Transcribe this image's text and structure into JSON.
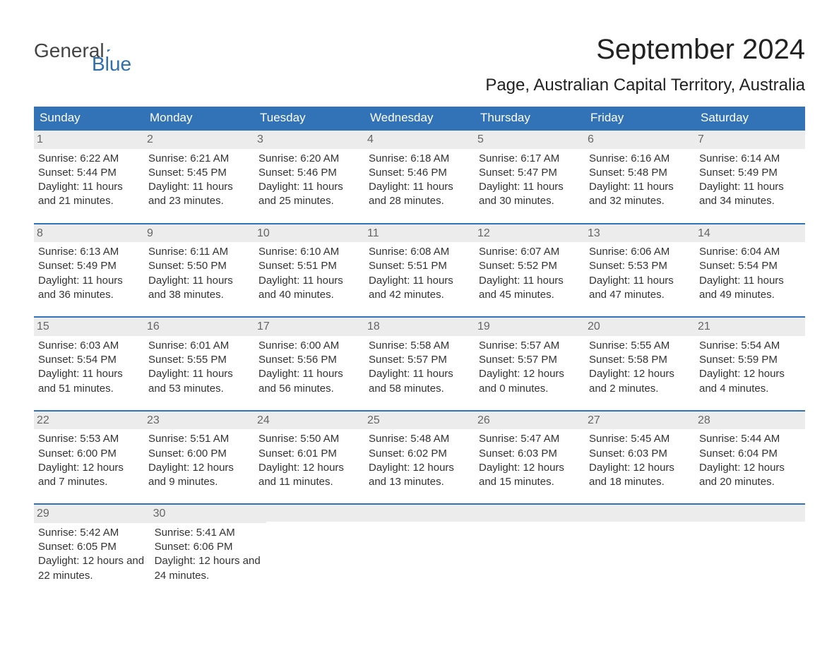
{
  "brand": {
    "word1": "General",
    "word2": "Blue",
    "color_general": "#444444",
    "color_blue": "#2f6fad",
    "mark_color": "#2f6fad"
  },
  "title": "September 2024",
  "location": "Page, Australian Capital Territory, Australia",
  "colors": {
    "header_bg": "#3173b6",
    "header_text": "#ffffff",
    "week_border": "#3173b6",
    "daynum_bg": "#ececec",
    "daynum_text": "#666666",
    "body_text": "#333333",
    "page_bg": "#ffffff"
  },
  "typography": {
    "title_fontsize": 40,
    "location_fontsize": 24,
    "dow_fontsize": 17,
    "cell_fontsize": 15
  },
  "days_of_week": [
    "Sunday",
    "Monday",
    "Tuesday",
    "Wednesday",
    "Thursday",
    "Friday",
    "Saturday"
  ],
  "weeks": [
    [
      {
        "n": "1",
        "sunrise": "Sunrise: 6:22 AM",
        "sunset": "Sunset: 5:44 PM",
        "daylight": "Daylight: 11 hours and 21 minutes."
      },
      {
        "n": "2",
        "sunrise": "Sunrise: 6:21 AM",
        "sunset": "Sunset: 5:45 PM",
        "daylight": "Daylight: 11 hours and 23 minutes."
      },
      {
        "n": "3",
        "sunrise": "Sunrise: 6:20 AM",
        "sunset": "Sunset: 5:46 PM",
        "daylight": "Daylight: 11 hours and 25 minutes."
      },
      {
        "n": "4",
        "sunrise": "Sunrise: 6:18 AM",
        "sunset": "Sunset: 5:46 PM",
        "daylight": "Daylight: 11 hours and 28 minutes."
      },
      {
        "n": "5",
        "sunrise": "Sunrise: 6:17 AM",
        "sunset": "Sunset: 5:47 PM",
        "daylight": "Daylight: 11 hours and 30 minutes."
      },
      {
        "n": "6",
        "sunrise": "Sunrise: 6:16 AM",
        "sunset": "Sunset: 5:48 PM",
        "daylight": "Daylight: 11 hours and 32 minutes."
      },
      {
        "n": "7",
        "sunrise": "Sunrise: 6:14 AM",
        "sunset": "Sunset: 5:49 PM",
        "daylight": "Daylight: 11 hours and 34 minutes."
      }
    ],
    [
      {
        "n": "8",
        "sunrise": "Sunrise: 6:13 AM",
        "sunset": "Sunset: 5:49 PM",
        "daylight": "Daylight: 11 hours and 36 minutes."
      },
      {
        "n": "9",
        "sunrise": "Sunrise: 6:11 AM",
        "sunset": "Sunset: 5:50 PM",
        "daylight": "Daylight: 11 hours and 38 minutes."
      },
      {
        "n": "10",
        "sunrise": "Sunrise: 6:10 AM",
        "sunset": "Sunset: 5:51 PM",
        "daylight": "Daylight: 11 hours and 40 minutes."
      },
      {
        "n": "11",
        "sunrise": "Sunrise: 6:08 AM",
        "sunset": "Sunset: 5:51 PM",
        "daylight": "Daylight: 11 hours and 42 minutes."
      },
      {
        "n": "12",
        "sunrise": "Sunrise: 6:07 AM",
        "sunset": "Sunset: 5:52 PM",
        "daylight": "Daylight: 11 hours and 45 minutes."
      },
      {
        "n": "13",
        "sunrise": "Sunrise: 6:06 AM",
        "sunset": "Sunset: 5:53 PM",
        "daylight": "Daylight: 11 hours and 47 minutes."
      },
      {
        "n": "14",
        "sunrise": "Sunrise: 6:04 AM",
        "sunset": "Sunset: 5:54 PM",
        "daylight": "Daylight: 11 hours and 49 minutes."
      }
    ],
    [
      {
        "n": "15",
        "sunrise": "Sunrise: 6:03 AM",
        "sunset": "Sunset: 5:54 PM",
        "daylight": "Daylight: 11 hours and 51 minutes."
      },
      {
        "n": "16",
        "sunrise": "Sunrise: 6:01 AM",
        "sunset": "Sunset: 5:55 PM",
        "daylight": "Daylight: 11 hours and 53 minutes."
      },
      {
        "n": "17",
        "sunrise": "Sunrise: 6:00 AM",
        "sunset": "Sunset: 5:56 PM",
        "daylight": "Daylight: 11 hours and 56 minutes."
      },
      {
        "n": "18",
        "sunrise": "Sunrise: 5:58 AM",
        "sunset": "Sunset: 5:57 PM",
        "daylight": "Daylight: 11 hours and 58 minutes."
      },
      {
        "n": "19",
        "sunrise": "Sunrise: 5:57 AM",
        "sunset": "Sunset: 5:57 PM",
        "daylight": "Daylight: 12 hours and 0 minutes."
      },
      {
        "n": "20",
        "sunrise": "Sunrise: 5:55 AM",
        "sunset": "Sunset: 5:58 PM",
        "daylight": "Daylight: 12 hours and 2 minutes."
      },
      {
        "n": "21",
        "sunrise": "Sunrise: 5:54 AM",
        "sunset": "Sunset: 5:59 PM",
        "daylight": "Daylight: 12 hours and 4 minutes."
      }
    ],
    [
      {
        "n": "22",
        "sunrise": "Sunrise: 5:53 AM",
        "sunset": "Sunset: 6:00 PM",
        "daylight": "Daylight: 12 hours and 7 minutes."
      },
      {
        "n": "23",
        "sunrise": "Sunrise: 5:51 AM",
        "sunset": "Sunset: 6:00 PM",
        "daylight": "Daylight: 12 hours and 9 minutes."
      },
      {
        "n": "24",
        "sunrise": "Sunrise: 5:50 AM",
        "sunset": "Sunset: 6:01 PM",
        "daylight": "Daylight: 12 hours and 11 minutes."
      },
      {
        "n": "25",
        "sunrise": "Sunrise: 5:48 AM",
        "sunset": "Sunset: 6:02 PM",
        "daylight": "Daylight: 12 hours and 13 minutes."
      },
      {
        "n": "26",
        "sunrise": "Sunrise: 5:47 AM",
        "sunset": "Sunset: 6:03 PM",
        "daylight": "Daylight: 12 hours and 15 minutes."
      },
      {
        "n": "27",
        "sunrise": "Sunrise: 5:45 AM",
        "sunset": "Sunset: 6:03 PM",
        "daylight": "Daylight: 12 hours and 18 minutes."
      },
      {
        "n": "28",
        "sunrise": "Sunrise: 5:44 AM",
        "sunset": "Sunset: 6:04 PM",
        "daylight": "Daylight: 12 hours and 20 minutes."
      }
    ],
    [
      {
        "n": "29",
        "sunrise": "Sunrise: 5:42 AM",
        "sunset": "Sunset: 6:05 PM",
        "daylight": "Daylight: 12 hours and 22 minutes."
      },
      {
        "n": "30",
        "sunrise": "Sunrise: 5:41 AM",
        "sunset": "Sunset: 6:06 PM",
        "daylight": "Daylight: 12 hours and 24 minutes."
      },
      null,
      null,
      null,
      null,
      null
    ]
  ]
}
